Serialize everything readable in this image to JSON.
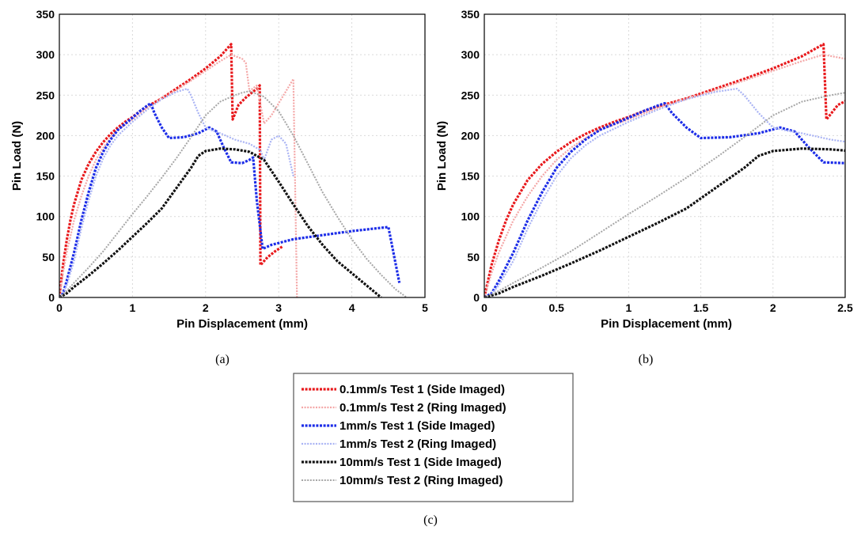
{
  "chart_data": [
    {
      "id": "a",
      "type": "line",
      "caption": "(a)",
      "xlabel": "Pin Displacement (mm)",
      "ylabel": "Pin Load (N)",
      "xlim": [
        0,
        5
      ],
      "ylim": [
        0,
        350
      ],
      "xticks": [
        "0",
        "1",
        "2",
        "3",
        "4",
        "5"
      ],
      "yticks": [
        "0",
        "50",
        "100",
        "150",
        "200",
        "250",
        "300",
        "350"
      ],
      "grid": true
    },
    {
      "id": "b",
      "type": "line",
      "caption": "(b)",
      "xlabel": "Pin Displacement (mm)",
      "ylabel": "Pin Load (N)",
      "xlim": [
        0,
        2.5
      ],
      "ylim": [
        0,
        350
      ],
      "xticks": [
        "0",
        "0.5",
        "1",
        "1.5",
        "2",
        "2.5"
      ],
      "yticks": [
        "0",
        "50",
        "100",
        "150",
        "200",
        "250",
        "300",
        "350"
      ],
      "grid": true
    }
  ],
  "series": [
    {
      "name": "0.1mm/s Test 1 (Side Imaged)",
      "color": "#e8191c",
      "points": [
        [
          0,
          0
        ],
        [
          0.05,
          40
        ],
        [
          0.1,
          70
        ],
        [
          0.15,
          95
        ],
        [
          0.2,
          115
        ],
        [
          0.3,
          145
        ],
        [
          0.4,
          165
        ],
        [
          0.5,
          180
        ],
        [
          0.6,
          192
        ],
        [
          0.7,
          202
        ],
        [
          0.8,
          210
        ],
        [
          0.9,
          217
        ],
        [
          1.0,
          223
        ],
        [
          1.1,
          230
        ],
        [
          1.2,
          236
        ],
        [
          1.4,
          246
        ],
        [
          1.6,
          258
        ],
        [
          1.8,
          270
        ],
        [
          2.0,
          283
        ],
        [
          2.2,
          298
        ],
        [
          2.35,
          313
        ],
        [
          2.37,
          220
        ],
        [
          2.45,
          238
        ],
        [
          2.55,
          247
        ],
        [
          2.7,
          258
        ],
        [
          2.74,
          262
        ],
        [
          2.75,
          40
        ],
        [
          2.85,
          50
        ],
        [
          2.95,
          57
        ],
        [
          3.05,
          63
        ]
      ]
    },
    {
      "name": "0.1mm/s Test 2 (Ring Imaged)",
      "color": "#f4a6a6",
      "points": [
        [
          0,
          0
        ],
        [
          0.05,
          30
        ],
        [
          0.1,
          55
        ],
        [
          0.2,
          95
        ],
        [
          0.3,
          125
        ],
        [
          0.4,
          150
        ],
        [
          0.5,
          170
        ],
        [
          0.6,
          185
        ],
        [
          0.7,
          197
        ],
        [
          0.8,
          207
        ],
        [
          1.0,
          220
        ],
        [
          1.2,
          234
        ],
        [
          1.4,
          246
        ],
        [
          1.6,
          256
        ],
        [
          1.8,
          268
        ],
        [
          2.0,
          280
        ],
        [
          2.2,
          292
        ],
        [
          2.35,
          300
        ],
        [
          2.5,
          295
        ],
        [
          2.55,
          290
        ],
        [
          2.6,
          255
        ],
        [
          2.7,
          262
        ],
        [
          2.8,
          215
        ],
        [
          2.9,
          225
        ],
        [
          3.0,
          240
        ],
        [
          3.1,
          255
        ],
        [
          3.2,
          270
        ],
        [
          3.25,
          0
        ]
      ]
    },
    {
      "name": "1mm/s Test 1 (Side Imaged)",
      "color": "#1c2de8",
      "points": [
        [
          0,
          0
        ],
        [
          0.05,
          5
        ],
        [
          0.1,
          20
        ],
        [
          0.2,
          55
        ],
        [
          0.3,
          95
        ],
        [
          0.4,
          130
        ],
        [
          0.5,
          160
        ],
        [
          0.6,
          180
        ],
        [
          0.7,
          195
        ],
        [
          0.8,
          207
        ],
        [
          1.0,
          222
        ],
        [
          1.1,
          230
        ],
        [
          1.2,
          237
        ],
        [
          1.25,
          240
        ],
        [
          1.3,
          228
        ],
        [
          1.4,
          210
        ],
        [
          1.5,
          197
        ],
        [
          1.7,
          198
        ],
        [
          1.9,
          203
        ],
        [
          2.05,
          210
        ],
        [
          2.15,
          205
        ],
        [
          2.25,
          185
        ],
        [
          2.35,
          167
        ],
        [
          2.5,
          166
        ],
        [
          2.6,
          170
        ],
        [
          2.65,
          173
        ],
        [
          2.7,
          120
        ],
        [
          2.78,
          60
        ],
        [
          2.9,
          65
        ],
        [
          3.2,
          72
        ],
        [
          3.6,
          77
        ],
        [
          4.0,
          82
        ],
        [
          4.4,
          86
        ],
        [
          4.5,
          87
        ],
        [
          4.65,
          18
        ]
      ]
    },
    {
      "name": "1mm/s Test 2 (Ring Imaged)",
      "color": "#a9b3f4",
      "points": [
        [
          0,
          0
        ],
        [
          0.05,
          4
        ],
        [
          0.1,
          15
        ],
        [
          0.2,
          45
        ],
        [
          0.3,
          85
        ],
        [
          0.4,
          120
        ],
        [
          0.5,
          150
        ],
        [
          0.6,
          172
        ],
        [
          0.7,
          188
        ],
        [
          0.8,
          200
        ],
        [
          1.0,
          217
        ],
        [
          1.2,
          232
        ],
        [
          1.4,
          245
        ],
        [
          1.6,
          254
        ],
        [
          1.75,
          258
        ],
        [
          1.8,
          250
        ],
        [
          1.9,
          228
        ],
        [
          2.0,
          210
        ],
        [
          2.1,
          206
        ],
        [
          2.2,
          203
        ],
        [
          2.4,
          195
        ],
        [
          2.6,
          190
        ],
        [
          2.75,
          182
        ],
        [
          2.8,
          170
        ],
        [
          2.9,
          195
        ],
        [
          3.0,
          200
        ],
        [
          3.1,
          190
        ],
        [
          3.2,
          150
        ]
      ]
    },
    {
      "name": "10mm/s Test 1 (Side Imaged)",
      "color": "#111111",
      "points": [
        [
          0,
          0
        ],
        [
          0.1,
          5
        ],
        [
          0.2,
          13
        ],
        [
          0.4,
          27
        ],
        [
          0.6,
          42
        ],
        [
          0.8,
          58
        ],
        [
          1.0,
          75
        ],
        [
          1.2,
          92
        ],
        [
          1.4,
          110
        ],
        [
          1.6,
          135
        ],
        [
          1.8,
          160
        ],
        [
          1.9,
          175
        ],
        [
          2.0,
          181
        ],
        [
          2.2,
          184
        ],
        [
          2.4,
          183
        ],
        [
          2.6,
          180
        ],
        [
          2.8,
          170
        ],
        [
          3.0,
          143
        ],
        [
          3.2,
          115
        ],
        [
          3.4,
          88
        ],
        [
          3.6,
          65
        ],
        [
          3.8,
          45
        ],
        [
          4.0,
          30
        ],
        [
          4.2,
          15
        ],
        [
          4.4,
          0
        ]
      ]
    },
    {
      "name": "10mm/s Test 2 (Ring Imaged)",
      "color": "#a6a6a6",
      "points": [
        [
          0,
          0
        ],
        [
          0.1,
          8
        ],
        [
          0.2,
          18
        ],
        [
          0.4,
          37
        ],
        [
          0.6,
          57
        ],
        [
          0.8,
          80
        ],
        [
          1.0,
          103
        ],
        [
          1.2,
          125
        ],
        [
          1.4,
          148
        ],
        [
          1.6,
          172
        ],
        [
          1.8,
          198
        ],
        [
          2.0,
          225
        ],
        [
          2.2,
          242
        ],
        [
          2.4,
          250
        ],
        [
          2.5,
          253
        ],
        [
          2.6,
          255
        ],
        [
          2.8,
          248
        ],
        [
          3.0,
          230
        ],
        [
          3.2,
          200
        ],
        [
          3.4,
          165
        ],
        [
          3.6,
          130
        ],
        [
          3.8,
          100
        ],
        [
          4.0,
          72
        ],
        [
          4.2,
          48
        ],
        [
          4.4,
          28
        ],
        [
          4.6,
          10
        ],
        [
          4.75,
          0
        ]
      ]
    }
  ],
  "legend_caption": "(c)"
}
